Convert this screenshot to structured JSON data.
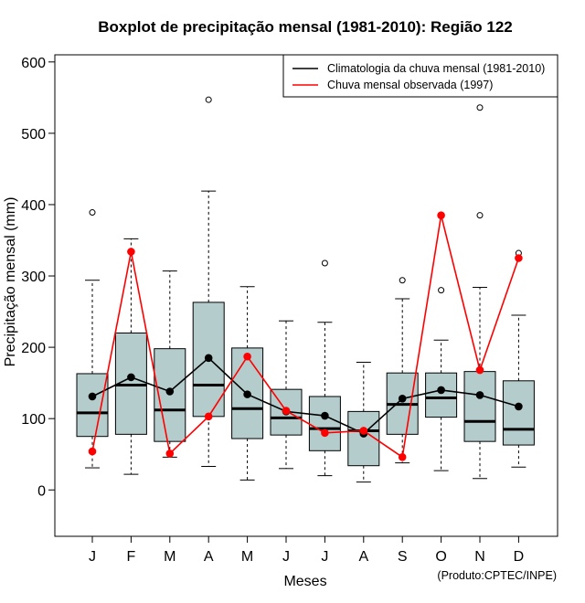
{
  "chart_data": {
    "type": "boxplot",
    "title": "Boxplot de precipitação mensal (1981-2010): Região 122",
    "xlabel": "Meses",
    "ylabel": "Precipitação mensal (mm)",
    "credit": "(Produto:CPTEC/INPE)",
    "ylim": [
      -65,
      610
    ],
    "yticks": [
      0,
      100,
      200,
      300,
      400,
      500,
      600
    ],
    "categories": [
      "J",
      "F",
      "M",
      "A",
      "M",
      "J",
      "J",
      "A",
      "S",
      "O",
      "N",
      "D"
    ],
    "boxes": [
      {
        "whisker_low": 31,
        "q1": 75,
        "median": 108,
        "q3": 163,
        "whisker_high": 294,
        "outliers": [
          389
        ]
      },
      {
        "whisker_low": 22,
        "q1": 78,
        "median": 147,
        "q3": 220,
        "whisker_high": 352,
        "outliers": []
      },
      {
        "whisker_low": 46,
        "q1": 68,
        "median": 112,
        "q3": 198,
        "whisker_high": 307,
        "outliers": []
      },
      {
        "whisker_low": 33,
        "q1": 103,
        "median": 147,
        "q3": 263,
        "whisker_high": 419,
        "outliers": [
          547
        ]
      },
      {
        "whisker_low": 14,
        "q1": 72,
        "median": 114,
        "q3": 199,
        "whisker_high": 285,
        "outliers": []
      },
      {
        "whisker_low": 30,
        "q1": 77,
        "median": 101,
        "q3": 141,
        "whisker_high": 237,
        "outliers": []
      },
      {
        "whisker_low": 20,
        "q1": 55,
        "median": 86,
        "q3": 131,
        "whisker_high": 235,
        "outliers": [
          318
        ]
      },
      {
        "whisker_low": 11,
        "q1": 34,
        "median": 83,
        "q3": 110,
        "whisker_high": 179,
        "outliers": []
      },
      {
        "whisker_low": 38,
        "q1": 78,
        "median": 120,
        "q3": 164,
        "whisker_high": 268,
        "outliers": [
          294
        ]
      },
      {
        "whisker_low": 27,
        "q1": 102,
        "median": 129,
        "q3": 164,
        "whisker_high": 210,
        "outliers": [
          280
        ]
      },
      {
        "whisker_low": 16,
        "q1": 68,
        "median": 96,
        "q3": 166,
        "whisker_high": 284,
        "outliers": [
          385,
          536
        ]
      },
      {
        "whisker_low": 32,
        "q1": 63,
        "median": 85,
        "q3": 153,
        "whisker_high": 245,
        "outliers": [
          332
        ]
      }
    ],
    "series": [
      {
        "name": "Climatologia da chuva mensal (1981-2010)",
        "color": "#000000",
        "values": [
          131,
          158,
          138,
          185,
          134,
          110,
          104,
          79,
          128,
          140,
          133,
          117
        ]
      },
      {
        "name": "Chuva mensal observada (1997)",
        "color": "#ff0000",
        "values": [
          54,
          334,
          51,
          103,
          187,
          111,
          80,
          83,
          46,
          385,
          168,
          325
        ]
      }
    ],
    "box_fill": "#b4cccc",
    "legend_position": "top-right"
  }
}
